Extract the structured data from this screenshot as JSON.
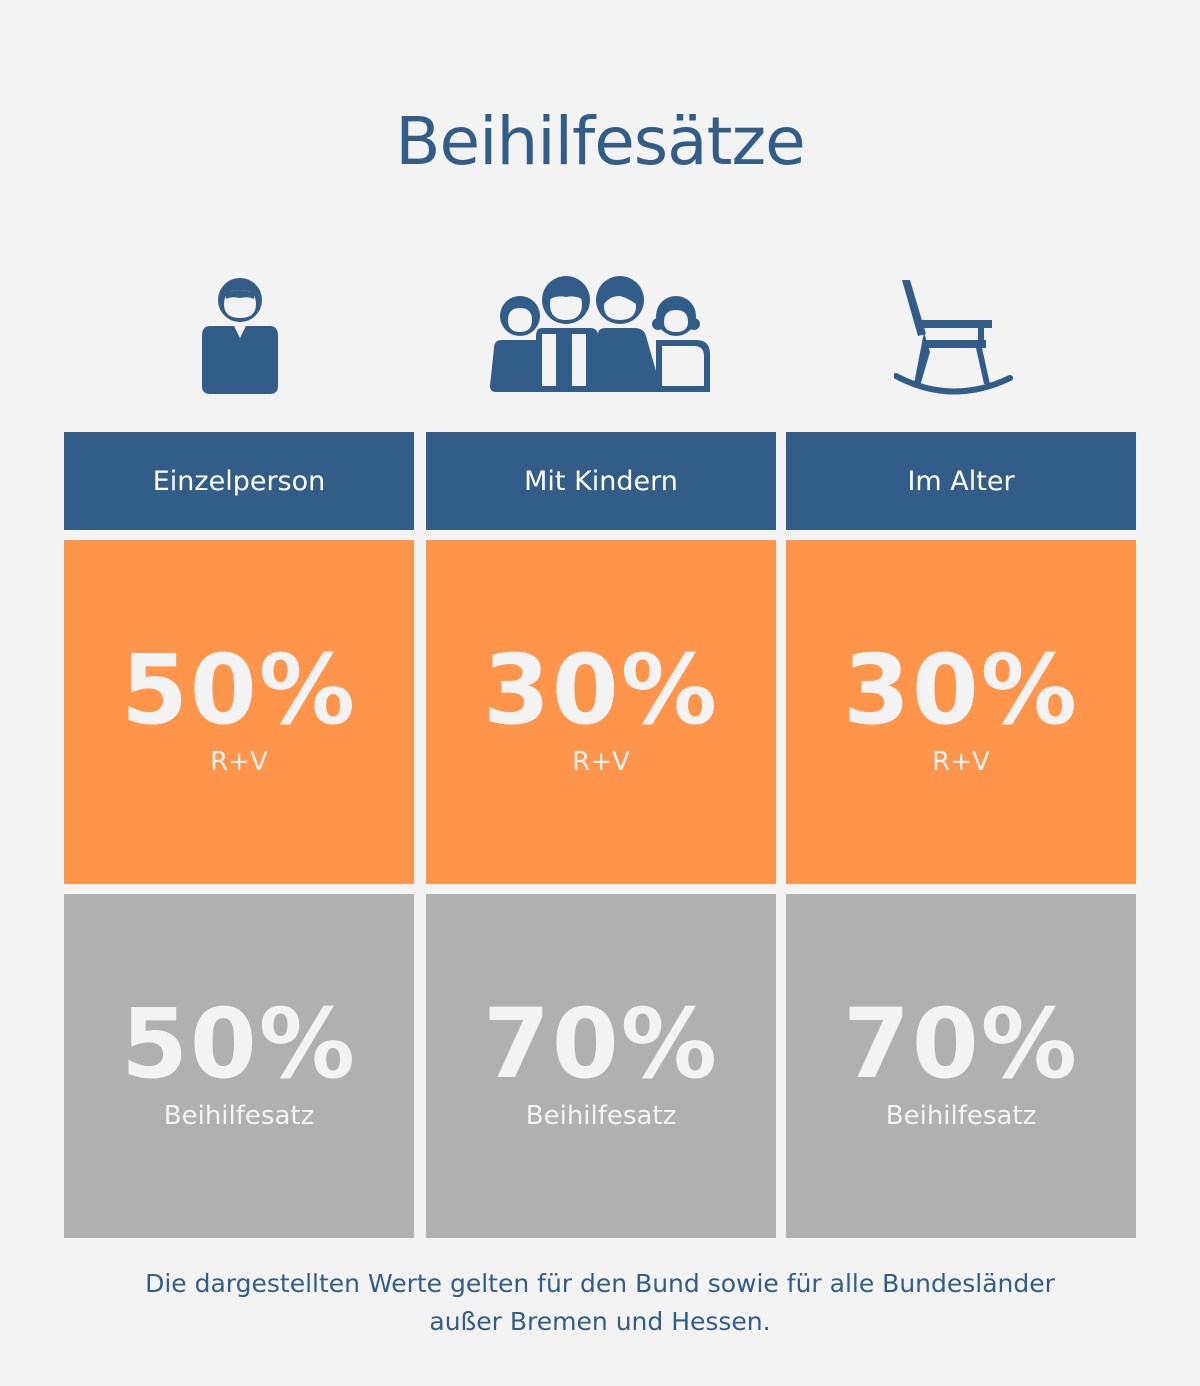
{
  "title": "Beihilfesätze",
  "columns": [
    {
      "icon": "person-icon",
      "label": "Einzelperson",
      "rv_value": "50%",
      "rv_label": "R+V",
      "bh_value": "50%",
      "bh_label": "Beihilfesatz"
    },
    {
      "icon": "family-icon",
      "label": "Mit Kindern",
      "rv_value": "30%",
      "rv_label": "R+V",
      "bh_value": "70%",
      "bh_label": "Beihilfesatz"
    },
    {
      "icon": "rocking-chair-icon",
      "label": "Im Alter",
      "rv_value": "30%",
      "rv_label": "R+V",
      "bh_value": "70%",
      "bh_label": "Beihilfesatz"
    }
  ],
  "footnote": {
    "line1": "Die dargestellten Werte gelten für den Bund sowie für alle Bundesländer",
    "line2": "außer Bremen und Hessen."
  },
  "colors": {
    "background": "#f3f3f3",
    "blue": "#325d89",
    "orange": "#ff944b",
    "gray": "#b0b0b0"
  }
}
